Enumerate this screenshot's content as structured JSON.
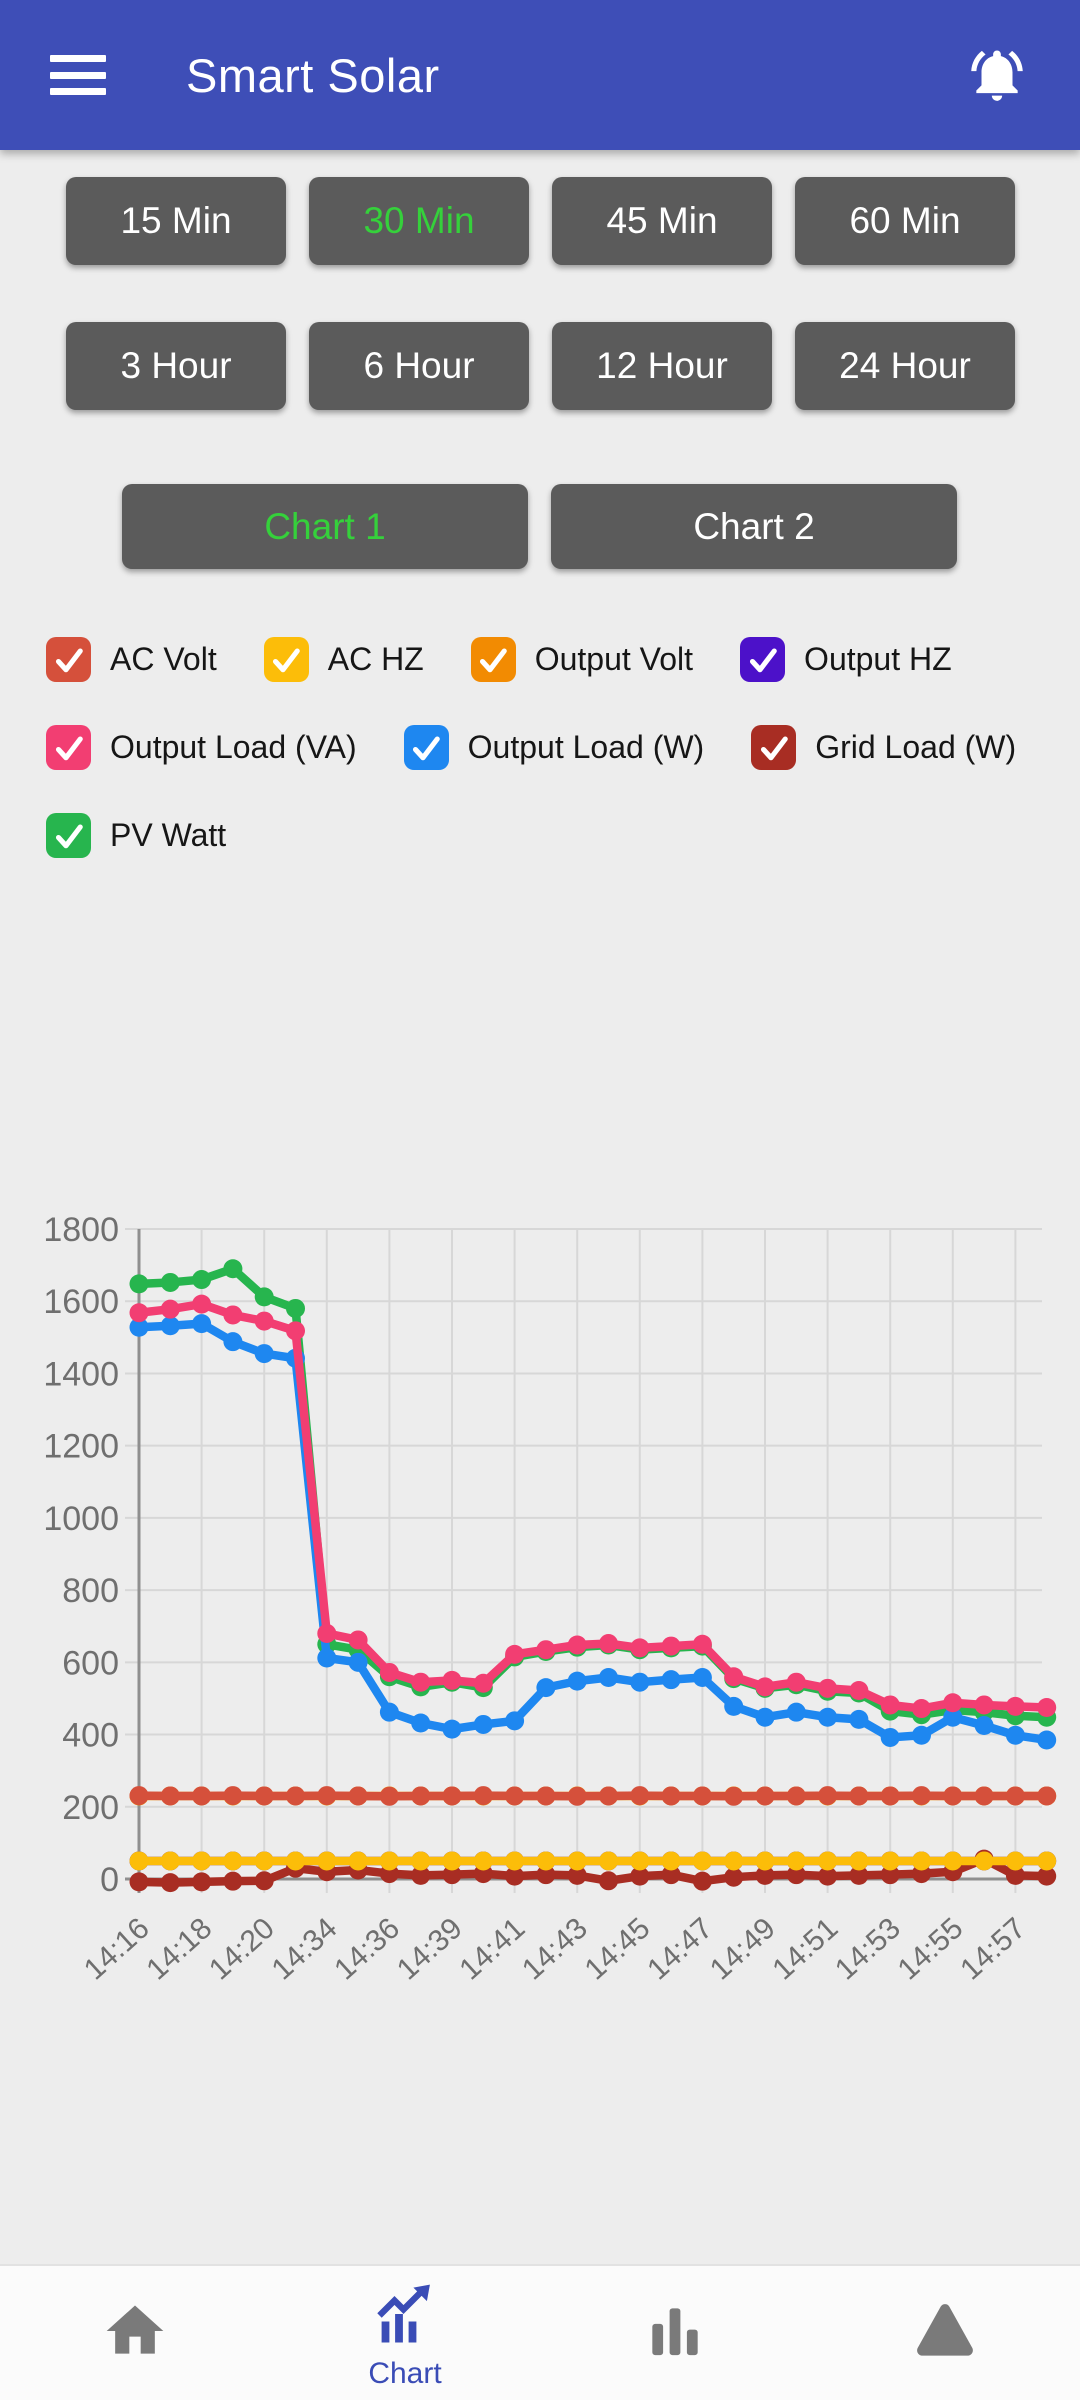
{
  "app_bar": {
    "title": "Smart Solar",
    "background": "#3e4eb7"
  },
  "time_buttons": {
    "labels": [
      "15 Min",
      "30 Min",
      "45 Min",
      "60 Min",
      "3 Hour",
      "6 Hour",
      "12 Hour",
      "24 Hour"
    ],
    "selected": "30 Min",
    "selected_color": "#35d13b",
    "button_color": "#5b5b5b"
  },
  "chart_tabs": {
    "labels": [
      "Chart 1",
      "Chart 2"
    ],
    "selected": "Chart 1",
    "selected_color": "#35d13b"
  },
  "legend": {
    "row_breaks": [
      4,
      3,
      1
    ],
    "items": [
      {
        "label": "AC Volt",
        "color": "#d5503b",
        "checked": true
      },
      {
        "label": "AC HZ",
        "color": "#fcbd09",
        "checked": true
      },
      {
        "label": "Output Volt",
        "color": "#f28b02",
        "checked": true
      },
      {
        "label": "Output HZ",
        "color": "#4c11c9",
        "checked": true
      },
      {
        "label": "Output Load (VA)",
        "color": "#f23e72",
        "checked": true
      },
      {
        "label": "Output Load (W)",
        "color": "#1e87f0",
        "checked": true
      },
      {
        "label": "Grid Load (W)",
        "color": "#a82d23",
        "checked": true
      },
      {
        "label": "PV Watt",
        "color": "#27b54e",
        "checked": true
      }
    ]
  },
  "chart_data": {
    "type": "line",
    "title": "",
    "xlabel": "",
    "ylabel": "",
    "ylim": [
      0,
      1800
    ],
    "y_ticks": [
      0,
      200,
      400,
      600,
      800,
      1000,
      1200,
      1400,
      1600,
      1800
    ],
    "grid": true,
    "legend_position": "above",
    "x_labels": [
      "14:16",
      "14:18",
      "14:20",
      "14:34",
      "14:36",
      "14:39",
      "14:41",
      "14:43",
      "14:45",
      "14:47",
      "14:49",
      "14:51",
      "14:53",
      "14:55",
      "14:57"
    ],
    "points_per_label": 2,
    "series": [
      {
        "name": "Output Volt",
        "color": "#f28b02",
        "values": [
          230,
          230,
          230,
          230,
          230,
          230,
          230,
          230,
          230,
          230,
          230,
          230,
          230,
          230,
          230,
          230,
          230,
          230,
          230,
          230,
          230,
          230,
          230,
          230,
          230,
          230,
          230,
          230,
          230,
          230
        ]
      },
      {
        "name": "AC Volt",
        "color": "#d5503b",
        "values": [
          231,
          230,
          230,
          231,
          230,
          230,
          231,
          230,
          229,
          230,
          230,
          231,
          230,
          230,
          229,
          230,
          231,
          230,
          230,
          229,
          230,
          230,
          231,
          230,
          230,
          231,
          230,
          230,
          230,
          230
        ]
      },
      {
        "name": "Output HZ",
        "color": "#4c11c9",
        "values": [
          50,
          50,
          50,
          50,
          50,
          50,
          50,
          50,
          50,
          50,
          50,
          50,
          50,
          50,
          50,
          50,
          50,
          50,
          50,
          50,
          50,
          50,
          50,
          50,
          50,
          50,
          50,
          50,
          50,
          50
        ]
      },
      {
        "name": "Grid Load (W)",
        "color": "#a82d23",
        "values": [
          -8,
          -10,
          -8,
          -6,
          -5,
          30,
          20,
          25,
          15,
          10,
          12,
          15,
          8,
          12,
          10,
          -5,
          8,
          12,
          -6,
          5,
          10,
          12,
          8,
          10,
          12,
          15,
          20,
          55,
          10,
          8
        ]
      },
      {
        "name": "AC HZ",
        "color": "#fcbd09",
        "values": [
          50,
          50,
          50,
          50,
          50,
          50,
          50,
          50,
          50,
          50,
          50,
          50,
          50,
          50,
          50,
          50,
          50,
          50,
          50,
          50,
          50,
          50,
          50,
          50,
          50,
          50,
          50,
          50,
          50,
          50
        ]
      },
      {
        "name": "PV Watt",
        "color": "#27b54e",
        "values": [
          1648,
          1652,
          1660,
          1690,
          1612,
          1580,
          650,
          635,
          560,
          532,
          545,
          530,
          615,
          630,
          642,
          648,
          635,
          640,
          645,
          555,
          528,
          538,
          520,
          515,
          465,
          455,
          468,
          462,
          452,
          448
        ]
      },
      {
        "name": "Output Load (W)",
        "color": "#1e87f0",
        "values": [
          1528,
          1532,
          1538,
          1488,
          1455,
          1442,
          612,
          600,
          462,
          432,
          415,
          428,
          438,
          530,
          548,
          558,
          545,
          552,
          558,
          478,
          448,
          462,
          448,
          442,
          392,
          398,
          448,
          425,
          398,
          385
        ]
      },
      {
        "name": "Output Load (VA)",
        "color": "#f23e72",
        "values": [
          1568,
          1578,
          1592,
          1562,
          1545,
          1518,
          680,
          662,
          572,
          545,
          550,
          542,
          622,
          635,
          648,
          652,
          640,
          645,
          650,
          560,
          532,
          545,
          528,
          522,
          482,
          472,
          488,
          482,
          478,
          475
        ]
      }
    ]
  },
  "bottom_nav": {
    "active_color": "#3a4cb6",
    "inactive_color": "#7a7a7a",
    "items": [
      {
        "icon": "home",
        "label": "",
        "active": false
      },
      {
        "icon": "chart",
        "label": "Chart",
        "active": true
      },
      {
        "icon": "bar-chart",
        "label": "",
        "active": false
      },
      {
        "icon": "warning",
        "label": "",
        "active": false
      }
    ]
  }
}
